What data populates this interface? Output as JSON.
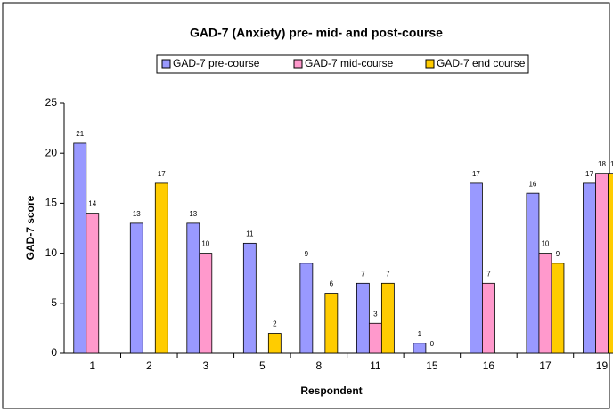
{
  "chart_data": {
    "type": "bar",
    "title": "GAD-7 (Anxiety) pre- mid- and post-course",
    "x_label": "Respondent",
    "y_label": "GAD-7 score",
    "categories": [
      "1",
      "2",
      "3",
      "5",
      "8",
      "11",
      "15",
      "16",
      "17",
      "19"
    ],
    "series": [
      {
        "name": "GAD-7 pre-course",
        "color": "#9999ff",
        "values": [
          21,
          13,
          13,
          11,
          9,
          7,
          1,
          17,
          16,
          17
        ]
      },
      {
        "name": "GAD-7 mid-course",
        "color": "#ff99cc",
        "values": [
          14,
          null,
          10,
          null,
          null,
          3,
          0,
          7,
          10,
          18
        ]
      },
      {
        "name": "GAD-7 end course",
        "color": "#ffcc00",
        "values": [
          null,
          17,
          null,
          2,
          6,
          7,
          null,
          null,
          9,
          18
        ]
      }
    ],
    "ylim": [
      0,
      25
    ],
    "yticks": [
      0,
      5,
      10,
      15,
      20,
      25
    ],
    "grid": false,
    "legend": "top"
  }
}
